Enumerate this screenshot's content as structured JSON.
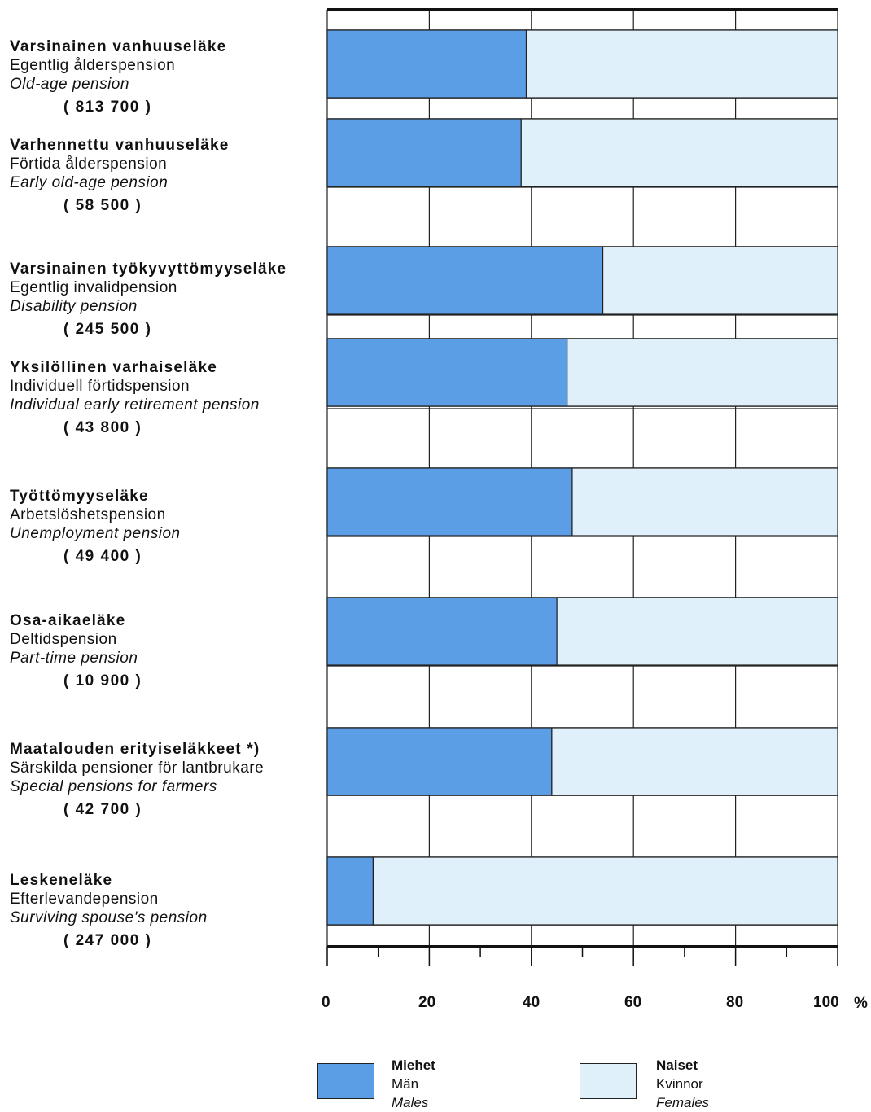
{
  "chart_data": {
    "type": "bar",
    "orientation": "horizontal",
    "stacked": true,
    "categories": [
      {
        "fi": "Varsinainen vanhuuseläke",
        "sv": "Egentlig ålderspension",
        "en": "Old-age pension",
        "count": "( 813 700 )"
      },
      {
        "fi": "Varhennettu vanhuuseläke",
        "sv": "Förtida ålderspension",
        "en": "Early old-age pension",
        "count": "( 58 500 )"
      },
      {
        "fi": "Varsinainen työkyvyttömyyseläke",
        "sv": "Egentlig invalidpension",
        "en": "Disability pension",
        "count": "( 245 500 )"
      },
      {
        "fi": "Yksilöllinen varhaiseläke",
        "sv": "Individuell förtidspension",
        "en": "Individual early retirement pension",
        "count": "( 43 800 )"
      },
      {
        "fi": "Työttömyyseläke",
        "sv": "Arbetslöshetspension",
        "en": "Unemployment pension",
        "count": "( 49 400 )"
      },
      {
        "fi": "Osa-aikaeläke",
        "sv": "Deltidspension",
        "en": "Part-time pension",
        "count": "( 10 900 )"
      },
      {
        "fi": "Maatalouden erityiseläkkeet *)",
        "sv": "Särskilda pensioner för lantbrukare",
        "en": "Special pensions for farmers",
        "count": "( 42 700 )"
      },
      {
        "fi": "Leskeneläke",
        "sv": "Efterlevandepension",
        "en": "Surviving spouse's pension",
        "count": "( 247 000 )"
      }
    ],
    "series": [
      {
        "name": "Miehet",
        "name_sv": "Män",
        "name_en": "Males",
        "color": "#5b9ee6",
        "values": [
          39,
          38,
          54,
          47,
          48,
          45,
          44,
          9
        ]
      },
      {
        "name": "Naiset",
        "name_sv": "Kvinnor",
        "name_en": "Females",
        "color": "#dff0fb",
        "values": [
          61,
          62,
          46,
          53,
          52,
          55,
          56,
          91
        ]
      }
    ],
    "x_ticks": [
      "0",
      "20",
      "40",
      "60",
      "80",
      "100"
    ],
    "x_unit": "%",
    "xlim": [
      0,
      100
    ],
    "grid": true,
    "legend_position": "bottom"
  }
}
